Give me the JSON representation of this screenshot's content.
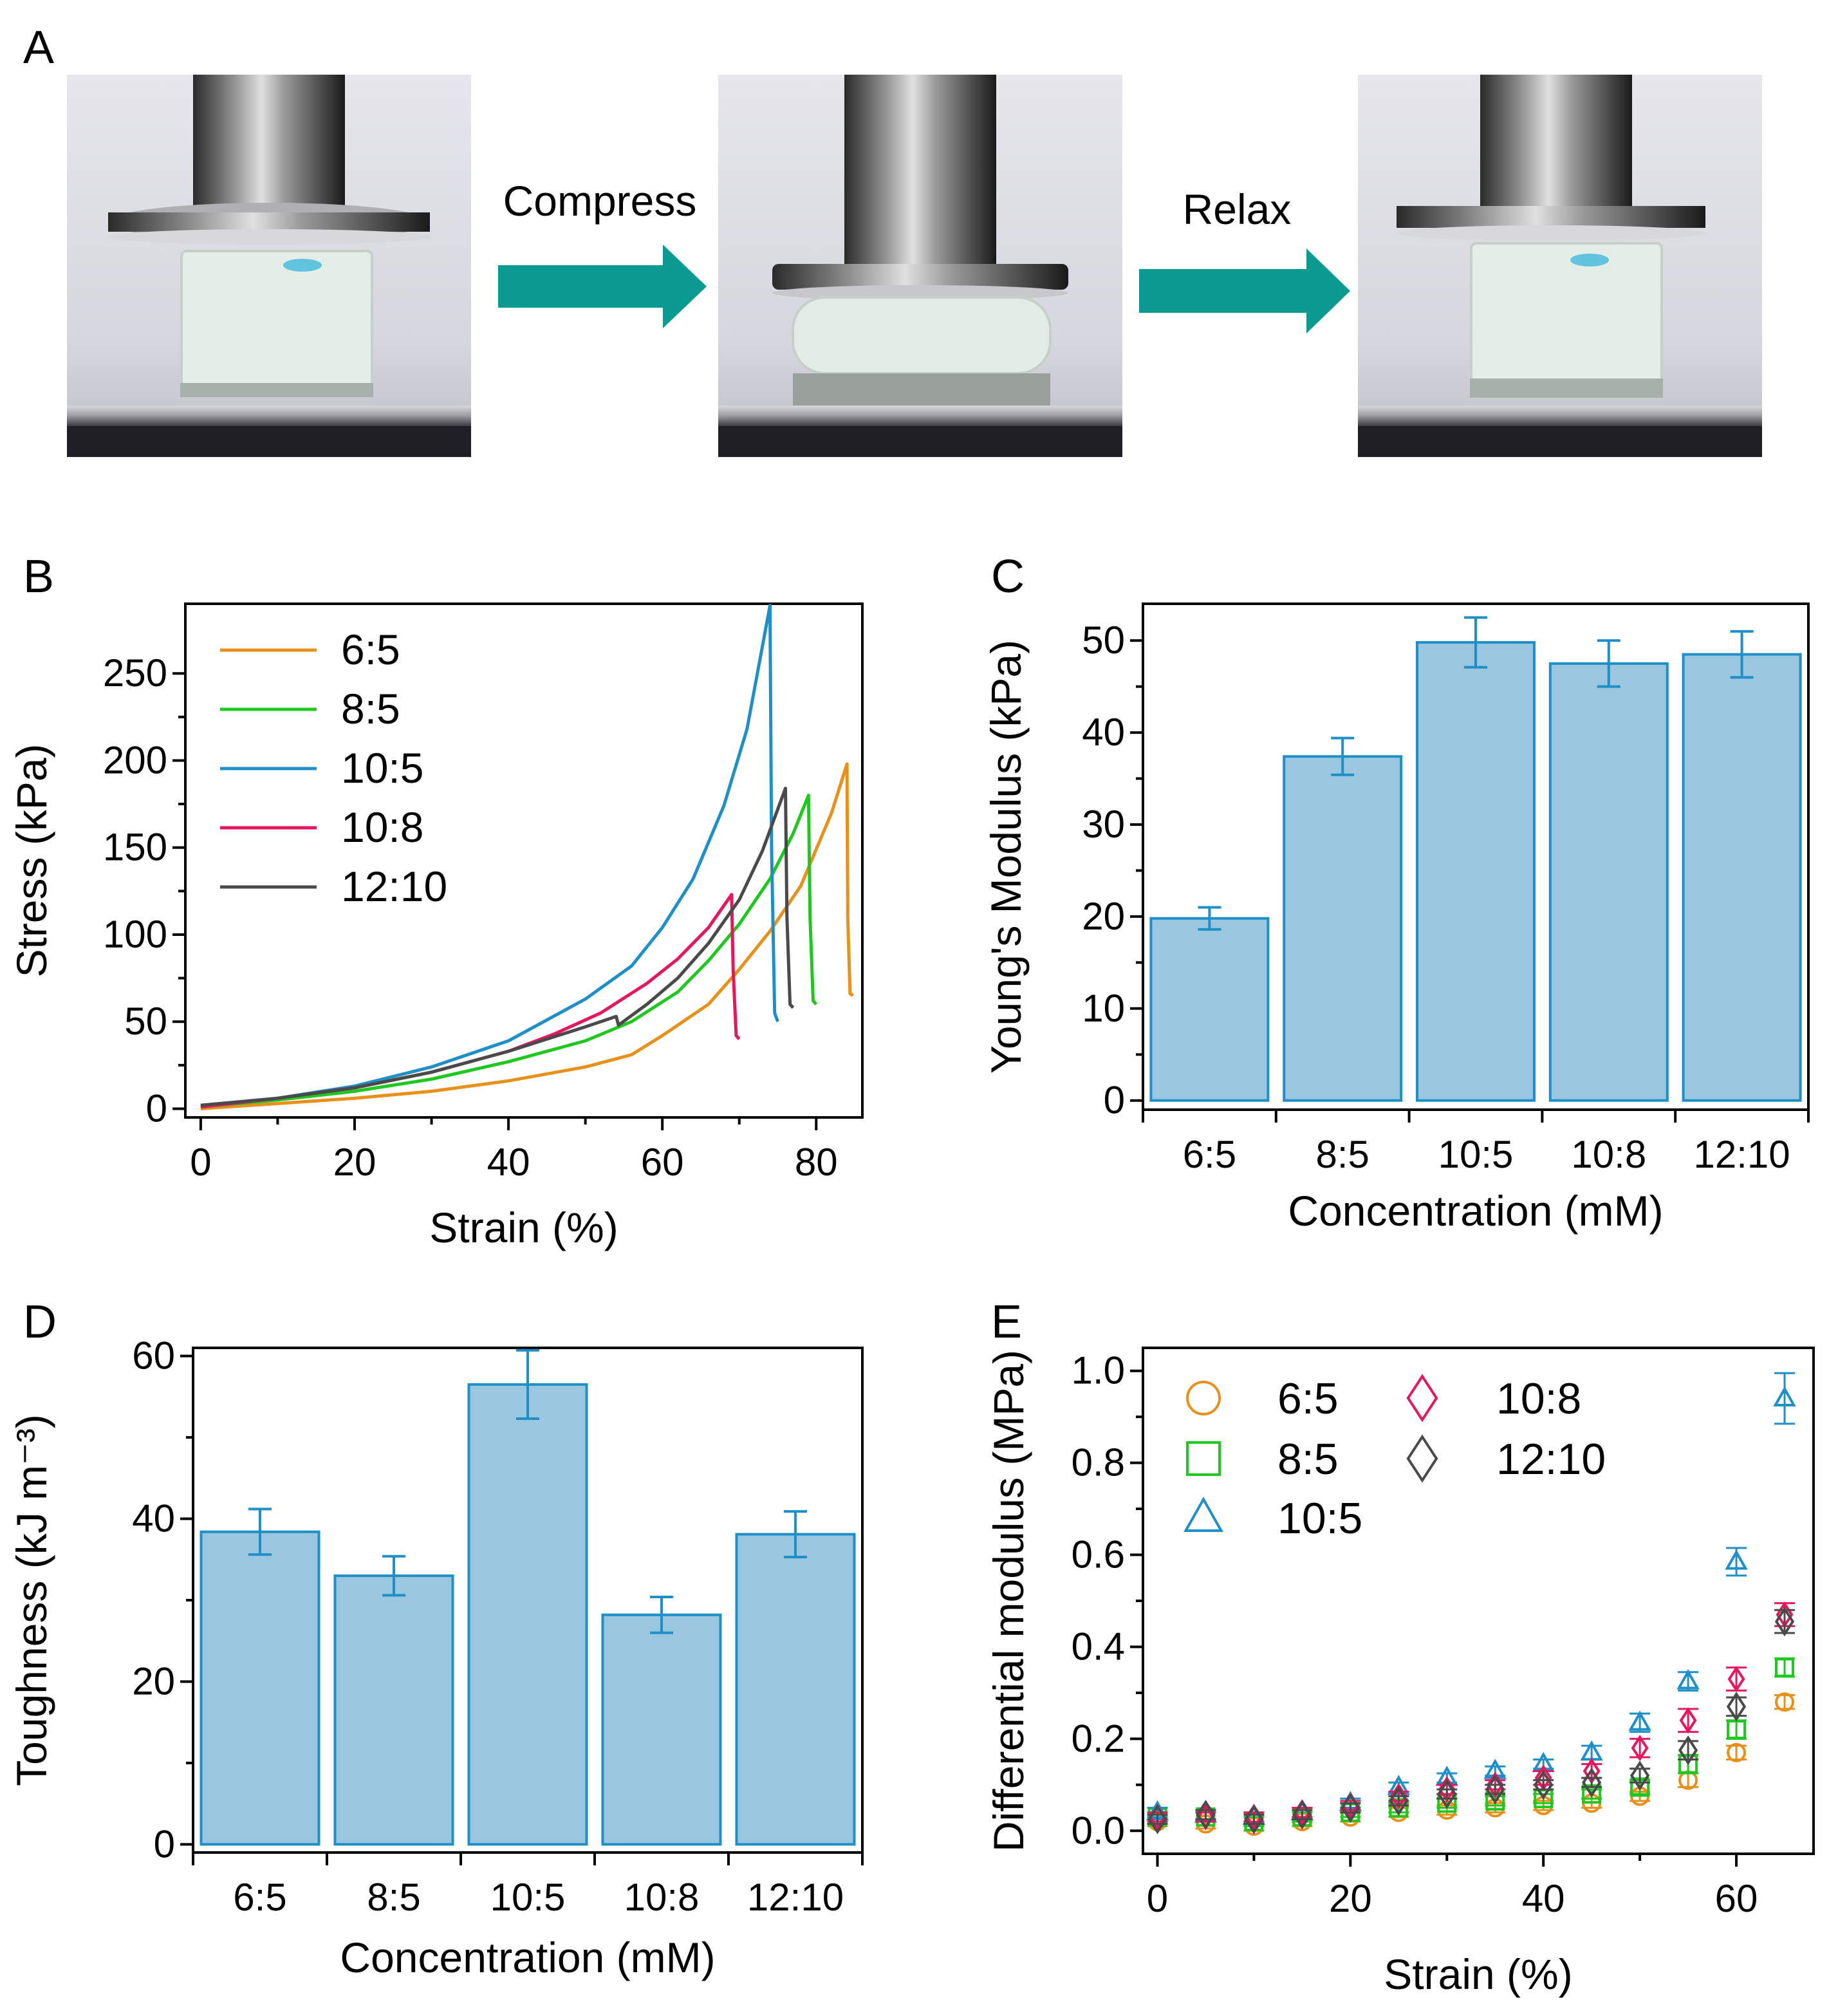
{
  "figure": {
    "panel_labels": {
      "a": "A",
      "b": "B",
      "c": "C",
      "d": "D",
      "e": "E"
    },
    "panel_a": {
      "arrow_1_label": "Compress",
      "arrow_2_label": "Relax",
      "colors": {
        "arrow": "#0a9a92",
        "marker": "#2ab0d8"
      }
    }
  },
  "chart_data": [
    {
      "id": "B",
      "type": "line",
      "xlabel": "Strain (%)",
      "ylabel": "Stress (kPa)",
      "xlim": [
        -2,
        86
      ],
      "ylim": [
        -5,
        290
      ],
      "xticks": [
        0,
        20,
        40,
        60,
        80
      ],
      "yticks": [
        0,
        50,
        100,
        150,
        200,
        250
      ],
      "legend": "top-left",
      "series": [
        {
          "name": "6:5",
          "color": "#e8901a",
          "x": [
            0,
            10,
            20,
            30,
            40,
            50,
            56,
            60,
            66,
            70,
            74,
            78,
            82,
            84,
            84.1,
            84.4,
            84.8
          ],
          "y": [
            0,
            3,
            6,
            10,
            16,
            24,
            31,
            42,
            60,
            80,
            102,
            128,
            170,
            198,
            110,
            66,
            65
          ]
        },
        {
          "name": "8:5",
          "color": "#1ec81e",
          "x": [
            0,
            10,
            20,
            30,
            40,
            50,
            56,
            62,
            66,
            70,
            74,
            77,
            79,
            79.2,
            79.6,
            80
          ],
          "y": [
            1,
            5,
            10,
            17,
            27,
            39,
            50,
            67,
            85,
            106,
            132,
            158,
            180,
            110,
            62,
            60
          ]
        },
        {
          "name": "10:5",
          "color": "#1f8fc8",
          "x": [
            0,
            10,
            20,
            30,
            40,
            50,
            56,
            60,
            64,
            68,
            71,
            74,
            74.2,
            74.6,
            75
          ],
          "y": [
            1,
            6,
            13,
            24,
            39,
            63,
            82,
            104,
            132,
            174,
            218,
            289,
            150,
            55,
            50
          ]
        },
        {
          "name": "10:8",
          "color": "#e8175d",
          "x": [
            0,
            10,
            20,
            30,
            40,
            46,
            52,
            58,
            62,
            66,
            69,
            69.2,
            69.6,
            70
          ],
          "y": [
            1,
            6,
            12,
            21,
            33,
            43,
            55,
            72,
            86,
            104,
            123,
            80,
            42,
            40
          ]
        },
        {
          "name": "12:10",
          "color": "#4a4a4a",
          "x": [
            0,
            10,
            20,
            30,
            40,
            50,
            54,
            54.3,
            58,
            62,
            66,
            70,
            73,
            76,
            76.2,
            76.6,
            77
          ],
          "y": [
            2,
            6,
            12,
            21,
            33,
            47,
            53,
            48,
            60,
            75,
            95,
            120,
            148,
            184,
            110,
            60,
            58
          ]
        }
      ]
    },
    {
      "id": "C",
      "type": "bar",
      "categories": [
        "6:5",
        "8:5",
        "10:5",
        "10:8",
        "12:10"
      ],
      "values": [
        19.8,
        37.4,
        49.8,
        47.5,
        48.5
      ],
      "errors": [
        1.2,
        2.0,
        2.7,
        2.5,
        2.5
      ],
      "xlabel": "Concentration (mM)",
      "ylabel": "Young's Modulus (kPa)",
      "ylim": [
        -1,
        54
      ],
      "yticks": [
        0,
        10,
        20,
        30,
        40,
        50
      ],
      "bar_color": "#9ac6df",
      "edge_color": "#1f8fc8"
    },
    {
      "id": "D",
      "type": "bar",
      "categories": [
        "6:5",
        "8:5",
        "10:5",
        "10:8",
        "12:10"
      ],
      "values": [
        38.4,
        33.0,
        56.5,
        28.2,
        38.1
      ],
      "errors": [
        2.8,
        2.4,
        4.2,
        2.2,
        2.8
      ],
      "xlabel": "Concentration (mM)",
      "ylabel": "Toughness (kJ m⁻³)",
      "ylim": [
        -1,
        61
      ],
      "yticks": [
        0,
        20,
        40,
        60
      ],
      "bar_color": "#9ac6df",
      "edge_color": "#1f8fc8"
    },
    {
      "id": "E",
      "type": "scatter",
      "xlabel": "Strain (%)",
      "ylabel": "Differential modulus (MPa)",
      "xlim": [
        -1.5,
        68
      ],
      "ylim": [
        -0.05,
        1.05
      ],
      "xticks": [
        0,
        20,
        40,
        60
      ],
      "yticks": [
        0.0,
        0.2,
        0.4,
        0.6,
        0.8,
        1.0
      ],
      "legend": "top-left",
      "x": [
        0,
        5,
        10,
        15,
        20,
        25,
        30,
        35,
        40,
        45,
        50,
        55,
        60,
        65
      ],
      "series": [
        {
          "name": "6:5",
          "marker": "circle",
          "color": "#e8901a",
          "values": [
            0.02,
            0.015,
            0.01,
            0.02,
            0.03,
            0.04,
            0.045,
            0.05,
            0.055,
            0.06,
            0.075,
            0.11,
            0.17,
            0.28
          ],
          "errors": [
            0.01,
            0.01,
            0.01,
            0.01,
            0.01,
            0.01,
            0.01,
            0.01,
            0.01,
            0.01,
            0.01,
            0.015,
            0.015,
            0.015
          ]
        },
        {
          "name": "8:5",
          "marker": "square",
          "color": "#1ec81e",
          "values": [
            0.03,
            0.03,
            0.02,
            0.03,
            0.04,
            0.05,
            0.06,
            0.065,
            0.07,
            0.08,
            0.095,
            0.145,
            0.22,
            0.355
          ],
          "errors": [
            0.01,
            0.01,
            0.01,
            0.01,
            0.01,
            0.01,
            0.01,
            0.01,
            0.01,
            0.01,
            0.015,
            0.02,
            0.02,
            0.02
          ]
        },
        {
          "name": "10:5",
          "marker": "triangle",
          "color": "#1f8fc8",
          "values": [
            0.04,
            0.035,
            0.03,
            0.04,
            0.06,
            0.095,
            0.115,
            0.13,
            0.145,
            0.17,
            0.235,
            0.325,
            0.585,
            0.94
          ],
          "errors": [
            0.01,
            0.01,
            0.01,
            0.01,
            0.01,
            0.01,
            0.01,
            0.01,
            0.01,
            0.015,
            0.02,
            0.02,
            0.03,
            0.055
          ]
        },
        {
          "name": "10:8",
          "marker": "diamond",
          "color": "#e8175d",
          "values": [
            0.03,
            0.03,
            0.03,
            0.04,
            0.055,
            0.075,
            0.09,
            0.1,
            0.115,
            0.13,
            0.18,
            0.24,
            0.33,
            0.47
          ],
          "errors": [
            0.01,
            0.01,
            0.01,
            0.01,
            0.01,
            0.01,
            0.01,
            0.01,
            0.015,
            0.015,
            0.02,
            0.025,
            0.025,
            0.025
          ]
        },
        {
          "name": "12:10",
          "marker": "diamond",
          "color": "#4a4a4a",
          "values": [
            0.025,
            0.035,
            0.025,
            0.035,
            0.05,
            0.065,
            0.08,
            0.09,
            0.1,
            0.105,
            0.12,
            0.175,
            0.27,
            0.455
          ],
          "errors": [
            0.01,
            0.01,
            0.01,
            0.01,
            0.01,
            0.01,
            0.01,
            0.01,
            0.01,
            0.01,
            0.015,
            0.02,
            0.02,
            0.025
          ]
        }
      ]
    }
  ]
}
